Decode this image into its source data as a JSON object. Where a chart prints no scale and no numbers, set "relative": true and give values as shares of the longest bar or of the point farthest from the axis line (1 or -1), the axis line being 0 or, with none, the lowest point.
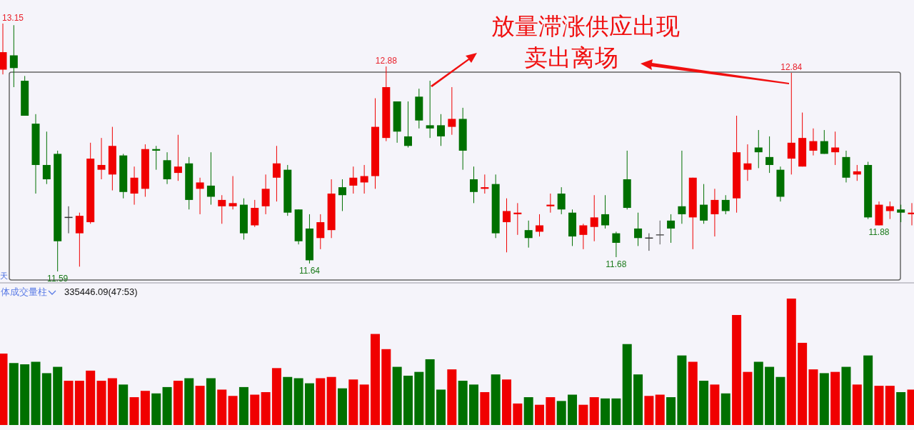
{
  "chart_data": [
    {
      "type": "candlestick",
      "categories": [
        null,
        null,
        null,
        null,
        null,
        null,
        null,
        null,
        null,
        null,
        null,
        null,
        null,
        null,
        null,
        null,
        null,
        null,
        null,
        null,
        null,
        null,
        null,
        null,
        null,
        null,
        null,
        null,
        null,
        null,
        null,
        null,
        null,
        null,
        null,
        null,
        null,
        null,
        null,
        null,
        null,
        null,
        null,
        null,
        null,
        null,
        null,
        null,
        null,
        null,
        null,
        null,
        null,
        null,
        null,
        null,
        null,
        null,
        null,
        null,
        null,
        null,
        null,
        null,
        null,
        null,
        null,
        null,
        null,
        null,
        null,
        null,
        null,
        null,
        null,
        null,
        null,
        null,
        null,
        null,
        null,
        null,
        null,
        null
      ],
      "ohlc": [
        [
          12.86,
          13.15,
          12.83,
          12.97
        ],
        [
          12.95,
          13.14,
          12.75,
          12.87
        ],
        [
          12.79,
          12.82,
          12.57,
          12.57
        ],
        [
          12.52,
          12.58,
          12.08,
          12.26
        ],
        [
          12.26,
          12.47,
          12.14,
          12.17
        ],
        [
          12.33,
          12.35,
          11.59,
          11.78
        ],
        [
          11.93,
          12.0,
          11.83,
          11.93
        ],
        [
          11.83,
          11.96,
          11.62,
          11.94
        ],
        [
          11.9,
          12.4,
          11.89,
          12.3
        ],
        [
          12.23,
          12.43,
          12.17,
          12.26
        ],
        [
          12.2,
          12.5,
          12.1,
          12.38
        ],
        [
          12.32,
          12.33,
          12.05,
          12.09
        ],
        [
          12.08,
          12.25,
          12.01,
          12.18
        ],
        [
          12.11,
          12.39,
          12.06,
          12.36
        ],
        [
          12.36,
          12.38,
          12.23,
          12.35
        ],
        [
          12.29,
          12.34,
          12.14,
          12.17
        ],
        [
          12.21,
          12.45,
          12.16,
          12.25
        ],
        [
          12.27,
          12.31,
          11.98,
          12.04
        ],
        [
          12.11,
          12.18,
          11.95,
          12.15
        ],
        [
          12.13,
          12.34,
          12.01,
          12.06
        ],
        [
          12.0,
          12.07,
          11.89,
          12.04
        ],
        [
          12.0,
          12.19,
          11.98,
          12.02
        ],
        [
          12.01,
          12.05,
          11.79,
          11.83
        ],
        [
          11.88,
          12.04,
          11.87,
          11.99
        ],
        [
          12.0,
          12.2,
          11.95,
          12.11
        ],
        [
          12.18,
          12.38,
          12.03,
          12.27
        ],
        [
          12.23,
          12.26,
          11.94,
          11.96
        ],
        [
          11.98,
          11.98,
          11.76,
          11.78
        ],
        [
          11.86,
          11.95,
          11.64,
          11.66
        ],
        [
          11.8,
          11.95,
          11.73,
          11.9
        ],
        [
          11.85,
          12.17,
          11.8,
          12.08
        ],
        [
          12.12,
          12.17,
          11.97,
          12.07
        ],
        [
          12.13,
          12.25,
          12.08,
          12.18
        ],
        [
          12.15,
          12.26,
          12.08,
          12.19
        ],
        [
          12.19,
          12.68,
          12.11,
          12.5
        ],
        [
          12.43,
          12.88,
          12.41,
          12.75
        ],
        [
          12.66,
          12.66,
          12.4,
          12.47
        ],
        [
          12.44,
          12.66,
          12.37,
          12.38
        ],
        [
          12.69,
          12.74,
          12.49,
          12.54
        ],
        [
          12.51,
          12.79,
          12.43,
          12.49
        ],
        [
          12.51,
          12.58,
          12.38,
          12.44
        ],
        [
          12.5,
          12.75,
          12.45,
          12.55
        ],
        [
          12.55,
          12.62,
          12.23,
          12.35
        ],
        [
          12.17,
          12.25,
          12.02,
          12.09
        ],
        [
          12.11,
          12.2,
          12.08,
          12.12
        ],
        [
          12.14,
          12.2,
          11.8,
          11.83
        ],
        [
          11.9,
          12.05,
          11.71,
          11.97
        ],
        [
          11.95,
          12.02,
          11.82,
          11.96
        ],
        [
          11.85,
          11.91,
          11.74,
          11.8
        ],
        [
          11.84,
          11.95,
          11.81,
          11.88
        ],
        [
          12.0,
          12.08,
          11.96,
          12.01
        ],
        [
          12.08,
          12.12,
          11.95,
          11.98
        ],
        [
          11.96,
          11.98,
          11.75,
          11.81
        ],
        [
          11.82,
          11.89,
          11.73,
          11.88
        ],
        [
          11.87,
          12.07,
          11.78,
          11.93
        ],
        [
          11.95,
          12.07,
          11.86,
          11.88
        ],
        [
          11.83,
          11.84,
          11.68,
          11.77
        ],
        [
          12.17,
          12.35,
          11.98,
          11.99
        ],
        [
          11.86,
          11.96,
          11.75,
          11.8
        ],
        [
          11.8,
          11.83,
          11.72,
          11.8
        ],
        [
          11.82,
          11.91,
          11.76,
          11.82
        ],
        [
          11.91,
          11.95,
          11.77,
          11.86
        ],
        [
          12.0,
          12.35,
          11.89,
          11.95
        ],
        [
          11.93,
          12.18,
          11.73,
          12.18
        ],
        [
          12.01,
          12.14,
          11.89,
          11.91
        ],
        [
          11.95,
          12.11,
          11.81,
          12.04
        ],
        [
          12.04,
          12.07,
          11.95,
          11.97
        ],
        [
          12.05,
          12.57,
          11.96,
          12.34
        ],
        [
          12.23,
          12.39,
          12.16,
          12.27
        ],
        [
          12.37,
          12.48,
          12.24,
          12.34
        ],
        [
          12.31,
          12.44,
          12.21,
          12.26
        ],
        [
          12.23,
          12.25,
          12.03,
          12.06
        ],
        [
          12.3,
          12.84,
          12.2,
          12.4
        ],
        [
          12.25,
          12.59,
          12.25,
          12.43
        ],
        [
          12.35,
          12.49,
          12.32,
          12.41
        ],
        [
          12.41,
          12.48,
          12.33,
          12.33
        ],
        [
          12.34,
          12.47,
          12.26,
          12.37
        ],
        [
          12.31,
          12.35,
          12.15,
          12.18
        ],
        [
          12.2,
          12.26,
          12.16,
          12.22
        ],
        [
          12.26,
          12.28,
          11.92,
          11.93
        ],
        [
          11.88,
          12.03,
          11.88,
          12.01
        ],
        [
          11.97,
          12.03,
          11.92,
          12.0
        ],
        [
          11.98,
          12.01,
          11.9,
          11.96
        ],
        [
          11.95,
          12.02,
          11.88,
          11.96
        ]
      ],
      "colors": [
        "#f00000",
        "#007000",
        "#007000",
        "#007000",
        "#007000",
        "#007000",
        "#333333",
        "#f00000",
        "#f00000",
        "#f00000",
        "#f00000",
        "#007000",
        "#f00000",
        "#f00000",
        "#007000",
        "#007000",
        "#f00000",
        "#007000",
        "#f00000",
        "#007000",
        "#f00000",
        "#f00000",
        "#007000",
        "#f00000",
        "#f00000",
        "#f00000",
        "#007000",
        "#007000",
        "#007000",
        "#f00000",
        "#f00000",
        "#007000",
        "#f00000",
        "#f00000",
        "#f00000",
        "#f00000",
        "#007000",
        "#007000",
        "#007000",
        "#007000",
        "#007000",
        "#f00000",
        "#007000",
        "#007000",
        "#f00000",
        "#007000",
        "#f00000",
        "#f00000",
        "#007000",
        "#f00000",
        "#f00000",
        "#007000",
        "#007000",
        "#f00000",
        "#f00000",
        "#007000",
        "#007000",
        "#007000",
        "#007000",
        "#333333",
        "#555555",
        "#007000",
        "#007000",
        "#f00000",
        "#007000",
        "#f00000",
        "#007000",
        "#f00000",
        "#f00000",
        "#007000",
        "#007000",
        "#007000",
        "#f00000",
        "#f00000",
        "#f00000",
        "#007000",
        "#f00000",
        "#007000",
        "#f00000",
        "#007000",
        "#f00000",
        "#f00000",
        "#007000",
        "#f00000"
      ],
      "annotations": [
        {
          "text": "13.15",
          "y": 13.15
        },
        {
          "text": "12.88",
          "y": 12.88
        },
        {
          "text": "12.84",
          "y": 12.84
        },
        {
          "text": "11.59",
          "y": 11.59
        },
        {
          "text": "11.64",
          "y": 11.64
        },
        {
          "text": "11.68",
          "y": 11.68
        },
        {
          "text": "11.88",
          "y": 11.88
        },
        "放量滞涨供应出现",
        "卖出离场",
        "天"
      ]
    },
    {
      "type": "bar",
      "relative": true,
      "categories": [
        null,
        null,
        null,
        null,
        null,
        null,
        null,
        null,
        null,
        null,
        null,
        null,
        null,
        null,
        null,
        null,
        null,
        null,
        null,
        null,
        null,
        null,
        null,
        null,
        null,
        null,
        null,
        null,
        null,
        null,
        null,
        null,
        null,
        null,
        null,
        null,
        null,
        null,
        null,
        null,
        null,
        null,
        null,
        null,
        null,
        null,
        null,
        null,
        null,
        null,
        null,
        null,
        null,
        null,
        null,
        null,
        null,
        null,
        null,
        null,
        null,
        null,
        null,
        null,
        null,
        null,
        null,
        null,
        null,
        null,
        null,
        null,
        null,
        null,
        null,
        null,
        null,
        null,
        null,
        null,
        null,
        null,
        null,
        null
      ],
      "values": [
        0.565,
        0.49,
        0.48,
        0.5,
        0.41,
        0.46,
        0.35,
        0.35,
        0.43,
        0.35,
        0.37,
        0.32,
        0.22,
        0.27,
        0.25,
        0.3,
        0.35,
        0.37,
        0.31,
        0.37,
        0.28,
        0.23,
        0.3,
        0.24,
        0.26,
        0.45,
        0.38,
        0.37,
        0.33,
        0.37,
        0.38,
        0.29,
        0.36,
        0.32,
        0.72,
        0.6,
        0.46,
        0.39,
        0.42,
        0.52,
        0.28,
        0.44,
        0.35,
        0.32,
        0.26,
        0.4,
        0.36,
        0.17,
        0.22,
        0.16,
        0.22,
        0.19,
        0.24,
        0.16,
        0.22,
        0.21,
        0.21,
        0.64,
        0.4,
        0.23,
        0.24,
        0.22,
        0.55,
        0.5,
        0.35,
        0.32,
        0.25,
        0.87,
        0.42,
        0.5,
        0.46,
        0.38,
        1,
        0.65,
        0.44,
        0.41,
        0.42,
        0.46,
        0.32,
        0.55,
        0.31,
        0.31,
        0.26,
        0.28
      ],
      "colors": [
        "#f00000",
        "#007000",
        "#007000",
        "#007000",
        "#007000",
        "#007000",
        "#f00000",
        "#f00000",
        "#f00000",
        "#f00000",
        "#f00000",
        "#007000",
        "#f00000",
        "#f00000",
        "#007000",
        "#007000",
        "#f00000",
        "#007000",
        "#f00000",
        "#007000",
        "#f00000",
        "#f00000",
        "#007000",
        "#f00000",
        "#f00000",
        "#f00000",
        "#007000",
        "#007000",
        "#007000",
        "#f00000",
        "#f00000",
        "#007000",
        "#f00000",
        "#f00000",
        "#f00000",
        "#f00000",
        "#007000",
        "#007000",
        "#007000",
        "#007000",
        "#007000",
        "#f00000",
        "#007000",
        "#007000",
        "#f00000",
        "#007000",
        "#f00000",
        "#f00000",
        "#007000",
        "#f00000",
        "#f00000",
        "#007000",
        "#007000",
        "#f00000",
        "#f00000",
        "#007000",
        "#007000",
        "#007000",
        "#007000",
        "#f00000",
        "#f00000",
        "#007000",
        "#007000",
        "#f00000",
        "#007000",
        "#f00000",
        "#007000",
        "#f00000",
        "#f00000",
        "#007000",
        "#007000",
        "#007000",
        "#f00000",
        "#f00000",
        "#f00000",
        "#007000",
        "#f00000",
        "#007000",
        "#f00000",
        "#007000",
        "#f00000",
        "#f00000",
        "#007000",
        "#f00000"
      ],
      "annotations": [
        "体成交量柱",
        "335446.09(47:53)"
      ]
    }
  ]
}
